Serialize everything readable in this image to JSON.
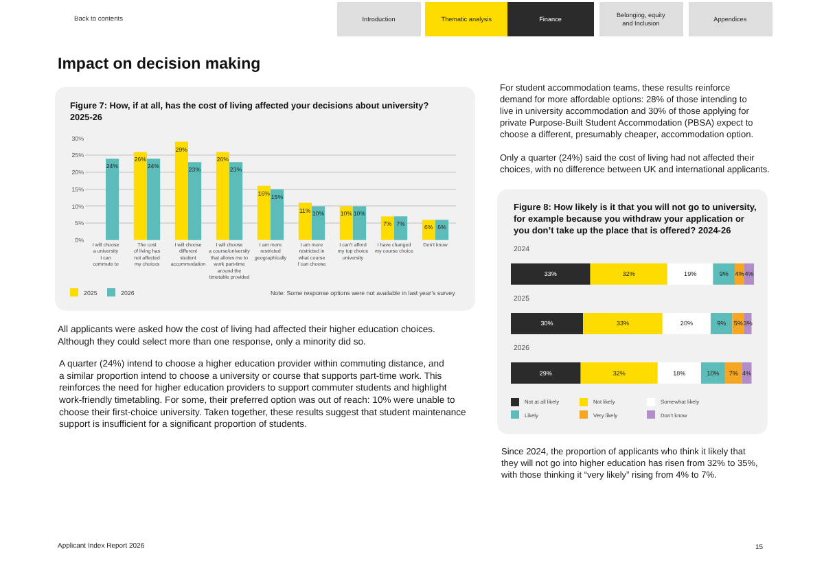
{
  "chart_data": [
    {
      "type": "bar",
      "title": "Figure 7: How, if at all, has the cost of living affected your decisions about university?\n2025-26",
      "categories": [
        "I will choose\na university\nI can\ncommute to",
        "The cost\nof living has\nnot affected\nmy choices",
        "I will choose\ndifferent\nstudent\naccommodation",
        "I will choose\na course/university\nthat allows me to\nwork part-time\naround the\ntimetable provided",
        "I am more\nrestricted\ngeographically",
        "I am more\nrestricted in\nwhat course\nI can choose",
        "I can’t afford\nmy top choice\nuniversity",
        "I have changed\nmy course choice",
        "Don’t know"
      ],
      "series": [
        {
          "name": "2025",
          "color": "#ffdc00",
          "values": [
            null,
            26,
            29,
            26,
            16,
            11,
            10,
            7,
            6
          ],
          "value_labels": [
            null,
            "26%",
            "29%",
            "26%",
            "16%",
            "11%",
            "10%",
            "7%",
            "6%"
          ]
        },
        {
          "name": "2026",
          "color": "#5cbcb9",
          "values": [
            24,
            24,
            23,
            23,
            15,
            10,
            10,
            7,
            6
          ],
          "value_labels": [
            "24%",
            "24%",
            "23%",
            "23%",
            "15%",
            "10%",
            "10%",
            "7%",
            "6%"
          ]
        }
      ],
      "ylim": [
        0,
        30
      ],
      "yticks": [
        {
          "value": 0,
          "label": "0%"
        },
        {
          "value": 5,
          "label": "5%"
        },
        {
          "value": 10,
          "label": "10%"
        },
        {
          "value": 15,
          "label": "15%"
        },
        {
          "value": 20,
          "label": "20%"
        },
        {
          "value": 25,
          "label": "25%"
        },
        {
          "value": 30,
          "label": "30%"
        }
      ],
      "grid": "y",
      "legend": "bottom left",
      "annotations": [
        "Back to contents",
        "Introduction",
        "Thematic analysis",
        "Finance",
        "Belonging, equity\nand Inclusion",
        "Appendices",
        "Impact on decision making",
        "Note: Some response options were not available in last year’s survey",
        "All applicants were asked how the cost of living had affected their higher education choices.\nAlthough they could select more than one response, only a minority did so.",
        "A quarter (24%) intend to choose a higher education provider within commuting distance, and\na similar proportion intend to choose a university or course that supports part-time work. This\nreinforces the need for higher education providers to support commuter students and highlight\nwork-friendly timetabling. For some, their preferred option was out of reach: 10% were unable to\nchoose their first-choice university. Taken together, these results suggest that student maintenance\nsupport is insufficient for a significant proportion of students.",
        "Applicant Index Report 2026",
        "15"
      ]
    },
    {
      "type": "bar",
      "orientation": "horizontal",
      "stacked": true,
      "title": "Figure 8: How likely is it that you will not go to university,\nfor example because you withdraw your application or\nyou don’t take up the place that is offered? 2024-26",
      "categories": [
        "2024",
        "2025",
        "2026"
      ],
      "series": [
        {
          "name": "Not at all likely",
          "color": "#2b2b2b",
          "values": [
            33,
            30,
            29
          ],
          "value_labels": [
            "33%",
            "30%",
            "29%"
          ]
        },
        {
          "name": "Not likely",
          "color": "#ffdc00",
          "values": [
            32,
            33,
            32
          ],
          "value_labels": [
            "32%",
            "33%",
            "32%"
          ]
        },
        {
          "name": "Somewhat likely",
          "color": "#ffffff",
          "values": [
            19,
            20,
            18
          ],
          "value_labels": [
            "19%",
            "20%",
            "18%"
          ]
        },
        {
          "name": "Likely",
          "color": "#5cbcb9",
          "values": [
            9,
            9,
            10
          ],
          "value_labels": [
            "9%",
            "9%",
            "10%"
          ]
        },
        {
          "name": "Very likely",
          "color": "#f5a623",
          "values": [
            4,
            5,
            7
          ],
          "value_labels": [
            "4%",
            "5%",
            "7%"
          ]
        },
        {
          "name": "Don’t know",
          "color": "#b38dc8",
          "values": [
            4,
            3,
            4
          ],
          "value_labels": [
            "4%",
            "3%",
            "4%"
          ]
        }
      ],
      "legend": "bottom",
      "annotations": [
        "For student accommodation teams, these results reinforce\ndemand for more affordable options: 28% of those intending to\nlive in university accommodation and 30% of those applying for\nprivate Purpose-Built Student Accommodation (PBSA) expect to\nchoose a different, presumably cheaper, accommodation option.",
        "Only a quarter (24%) said the cost of living had not affected their\nchoices, with no difference between UK and international applicants.",
        "Since 2024, the proportion of applicants who think it likely that\nthey will not go into higher education has risen from 32% to 35%,\nwith those thinking it “very likely” rising from 4% to 7%."
      ]
    }
  ]
}
